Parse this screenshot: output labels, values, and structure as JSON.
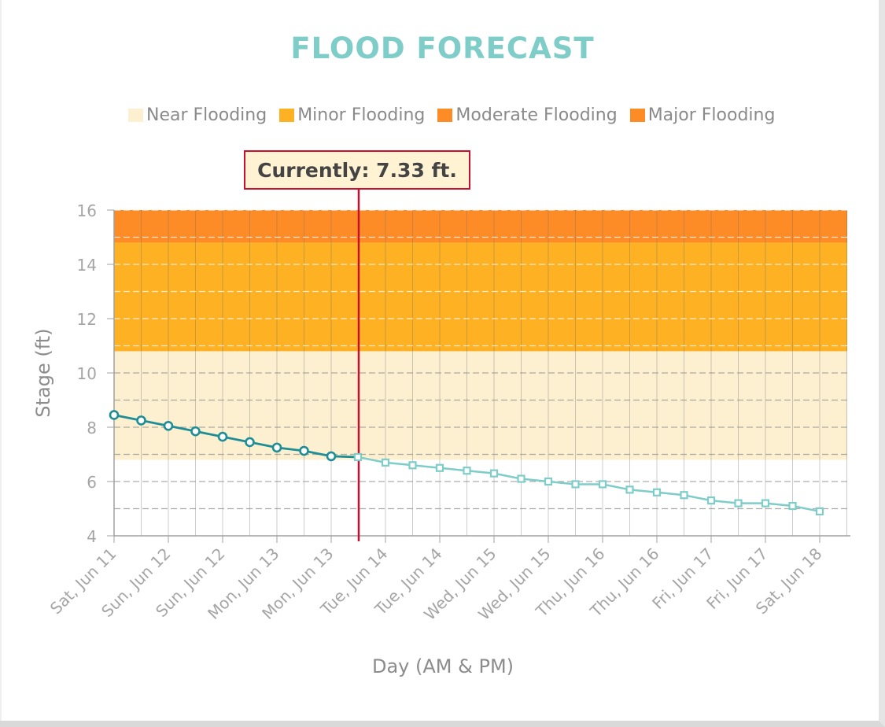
{
  "chart_data": {
    "type": "line",
    "title": "FLOOD FORECAST",
    "xlabel": "Day (AM & PM)",
    "ylabel": "Stage (ft)",
    "ylim": [
      4,
      16
    ],
    "yticks": [
      4,
      6,
      8,
      10,
      12,
      14,
      16
    ],
    "x_tick_labels": [
      "Sat, Jun 11",
      "Sun, Jun 12",
      "Sun, Jun 12",
      "Mon, Jun 13",
      "Mon, Jun 13",
      "Tue, Jun 14",
      "Tue, Jun 14",
      "Wed, Jun 15",
      "Wed, Jun 15",
      "Thu, Jun 16",
      "Thu, Jun 16",
      "Fri, Jun 17",
      "Fri, Jun 17",
      "Sat, Jun 18"
    ],
    "grid": true,
    "legend_position": "top",
    "flood_bands": [
      {
        "name": "Near Flooding",
        "from": 6.8,
        "to": 10.8,
        "color": "#fdf0d0"
      },
      {
        "name": "Minor Flooding",
        "from": 10.8,
        "to": 14.8,
        "color": "#fdb123"
      },
      {
        "name": "Moderate Flooding",
        "from": 14.8,
        "to": 16,
        "color": "#fd8b26"
      },
      {
        "name": "Major Flooding",
        "from": 16,
        "to": 16,
        "color": "#fd8b26"
      }
    ],
    "current": {
      "label": "Currently: 7.33 ft.",
      "value": 7.33
    },
    "series": [
      {
        "role": "observed",
        "color": "#1e8d96",
        "marker": "circle",
        "values": [
          8.45,
          8.25,
          8.05,
          7.85,
          7.65,
          7.45,
          7.25,
          7.13,
          6.93
        ]
      },
      {
        "role": "forecast",
        "color": "#7ecdc8",
        "marker": "square",
        "values": [
          6.9,
          6.7,
          6.6,
          6.5,
          6.4,
          6.3,
          6.1,
          6.0,
          5.9,
          5.9,
          5.7,
          5.6,
          5.5,
          5.3,
          5.2,
          5.2,
          5.1,
          4.9
        ]
      }
    ]
  }
}
